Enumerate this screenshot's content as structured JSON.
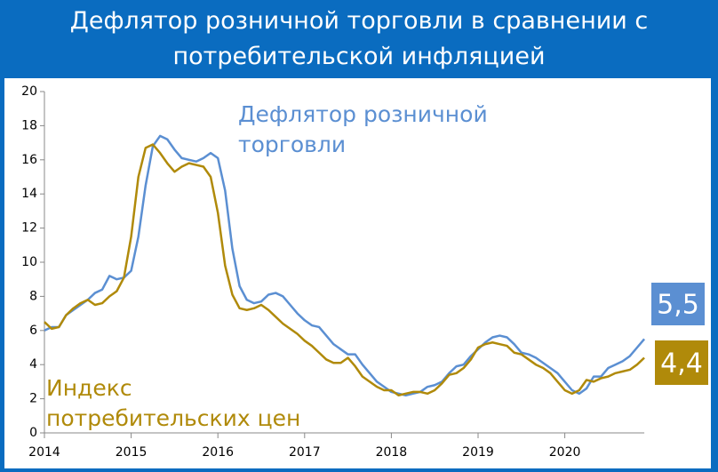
{
  "chart_data": {
    "type": "line",
    "title": "Дефлятор розничной торговли в сравнении с потребительской инфляцией",
    "categories": [
      "2014",
      null,
      null,
      null,
      null,
      null,
      null,
      null,
      null,
      null,
      null,
      null,
      "2015",
      null,
      null,
      null,
      null,
      null,
      null,
      null,
      null,
      null,
      null,
      null,
      "2016",
      null,
      null,
      null,
      null,
      null,
      null,
      null,
      null,
      null,
      null,
      null,
      "2017",
      null,
      null,
      null,
      null,
      null,
      null,
      null,
      null,
      null,
      null,
      null,
      "2018",
      null,
      null,
      null,
      null,
      null,
      null,
      null,
      null,
      null,
      null,
      null,
      "2019",
      null,
      null,
      null,
      null,
      null,
      null,
      null,
      null,
      null,
      null,
      null,
      "2020",
      null,
      null,
      null,
      null,
      null,
      null,
      null,
      null,
      null,
      null,
      null
    ],
    "series": [
      {
        "name": "Дефлятор розничной торговли",
        "color": "#5b8fd2",
        "end_label": "5,5",
        "values": [
          6.0,
          6.2,
          6.2,
          6.9,
          7.2,
          7.5,
          7.8,
          8.2,
          8.4,
          9.2,
          9.0,
          9.1,
          9.5,
          11.5,
          14.5,
          16.8,
          17.4,
          17.2,
          16.6,
          16.1,
          16.0,
          15.9,
          16.1,
          16.4,
          16.1,
          14.2,
          10.8,
          8.6,
          7.8,
          7.6,
          7.7,
          8.1,
          8.2,
          8.0,
          7.5,
          7.0,
          6.6,
          6.3,
          6.2,
          5.7,
          5.2,
          4.9,
          4.6,
          4.6,
          4.0,
          3.5,
          3.0,
          2.7,
          2.4,
          2.3,
          2.2,
          2.3,
          2.4,
          2.7,
          2.8,
          3.0,
          3.5,
          3.9,
          4.0,
          4.5,
          4.9,
          5.3,
          5.6,
          5.7,
          5.6,
          5.2,
          4.7,
          4.6,
          4.4,
          4.1,
          3.8,
          3.5,
          3.0,
          2.5,
          2.3,
          2.6,
          3.3,
          3.3,
          3.8,
          4.0,
          4.2,
          4.5,
          5.0,
          5.5
        ]
      },
      {
        "name": "Индекс потребительских цен",
        "color": "#b08a0a",
        "end_label": "4,4",
        "values": [
          6.5,
          6.1,
          6.2,
          6.9,
          7.3,
          7.6,
          7.8,
          7.5,
          7.6,
          8.0,
          8.3,
          9.1,
          11.5,
          15.0,
          16.7,
          16.9,
          16.4,
          15.8,
          15.3,
          15.6,
          15.8,
          15.7,
          15.6,
          15.0,
          12.9,
          9.8,
          8.1,
          7.3,
          7.2,
          7.3,
          7.5,
          7.2,
          6.8,
          6.4,
          6.1,
          5.8,
          5.4,
          5.1,
          4.7,
          4.3,
          4.1,
          4.1,
          4.4,
          3.9,
          3.3,
          3.0,
          2.7,
          2.5,
          2.5,
          2.2,
          2.3,
          2.4,
          2.4,
          2.3,
          2.5,
          2.9,
          3.4,
          3.5,
          3.8,
          4.3,
          5.0,
          5.2,
          5.3,
          5.2,
          5.1,
          4.7,
          4.6,
          4.3,
          4.0,
          3.8,
          3.5,
          3.0,
          2.5,
          2.3,
          2.5,
          3.1,
          3.0,
          3.2,
          3.3,
          3.5,
          3.6,
          3.7,
          4.0,
          4.4
        ]
      }
    ],
    "ylim": [
      0,
      20
    ],
    "yticks": [
      0,
      2,
      4,
      6,
      8,
      10,
      12,
      14,
      16,
      18,
      20
    ],
    "grid": false
  }
}
